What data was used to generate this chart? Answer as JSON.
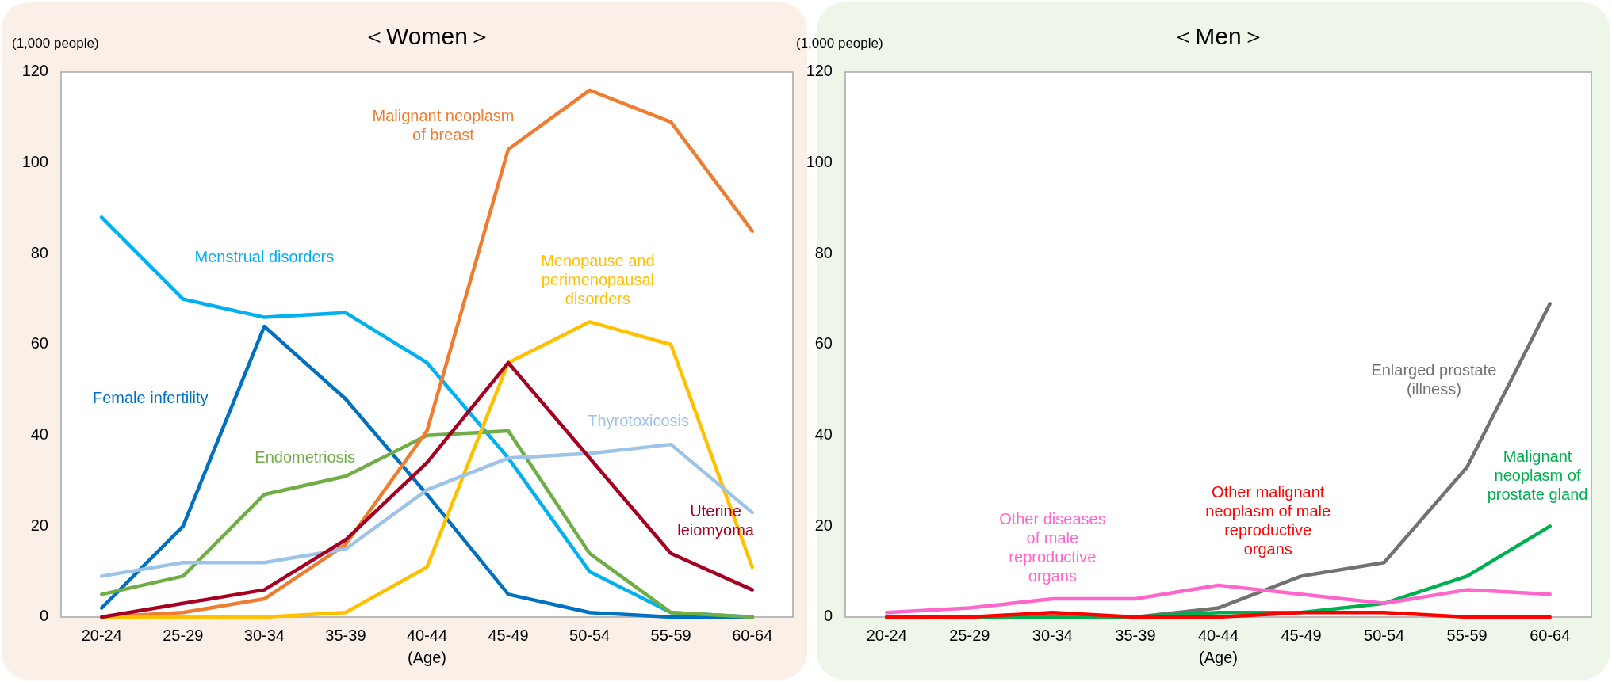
{
  "chart_data": [
    {
      "type": "line",
      "title": "＜Women＞",
      "ylabel": "(1,000 people)",
      "xlabel": "(Age)",
      "categories": [
        "20-24",
        "25-29",
        "30-34",
        "35-39",
        "40-44",
        "45-49",
        "50-54",
        "55-59",
        "60-64"
      ],
      "ylim": [
        0,
        120
      ],
      "yticks": [
        0,
        20,
        40,
        60,
        80,
        100,
        120
      ],
      "grid": false,
      "legend": false,
      "series": [
        {
          "name": "Menstrual disorders",
          "color": "#00b0f0",
          "values": [
            88,
            70,
            66,
            67,
            56,
            35,
            10,
            1,
            0
          ]
        },
        {
          "name": "Female infertility",
          "color": "#0070c0",
          "values": [
            2,
            20,
            64,
            48,
            27,
            5,
            1,
            0,
            0
          ]
        },
        {
          "name": "Endometriosis",
          "color": "#70ad47",
          "values": [
            5,
            9,
            27,
            31,
            40,
            41,
            14,
            1,
            0
          ]
        },
        {
          "name": "Malignant neoplasm\nof breast",
          "color": "#ed7d31",
          "values": [
            0,
            1,
            4,
            16,
            41,
            103,
            116,
            109,
            85
          ]
        },
        {
          "name": "Menopause and\nperimenopausal\ndisorders",
          "color": "#ffc000",
          "values": [
            0,
            0,
            0,
            1,
            11,
            56,
            65,
            60,
            11
          ]
        },
        {
          "name": "Thyrotoxicosis",
          "color": "#9dc3e6",
          "values": [
            9,
            12,
            12,
            15,
            28,
            35,
            36,
            38,
            23
          ]
        },
        {
          "name": "Uterine\nleiomyoma",
          "color": "#a50021",
          "values": [
            0,
            3,
            6,
            17,
            34,
            56,
            35,
            14,
            6
          ]
        }
      ]
    },
    {
      "type": "line",
      "title": "＜Men＞",
      "ylabel": "(1,000 people)",
      "xlabel": "(Age)",
      "categories": [
        "20-24",
        "25-29",
        "30-34",
        "35-39",
        "40-44",
        "45-49",
        "50-54",
        "55-59",
        "60-64"
      ],
      "ylim": [
        0,
        120
      ],
      "yticks": [
        0,
        20,
        40,
        60,
        80,
        100,
        120
      ],
      "grid": false,
      "legend": false,
      "series": [
        {
          "name": "Enlarged prostate\n(illness)",
          "color": "#767171",
          "values": [
            0,
            0,
            0,
            0,
            2,
            9,
            12,
            33,
            69
          ]
        },
        {
          "name": "Malignant\nneoplasm of\nprostate gland",
          "color": "#00b050",
          "values": [
            0,
            0,
            0,
            0,
            1,
            1,
            3,
            9,
            20
          ]
        },
        {
          "name": "Other malignant\nneoplasm of male\nreproductive\norgans",
          "color": "#ff0000",
          "values": [
            0,
            0,
            1,
            0,
            0,
            1,
            1,
            0,
            0
          ]
        },
        {
          "name": "Other diseases\nof male\nreproductive\norgans",
          "color": "#ff66cc",
          "values": [
            1,
            2,
            4,
            4,
            7,
            5,
            3,
            6,
            5
          ]
        }
      ]
    }
  ]
}
